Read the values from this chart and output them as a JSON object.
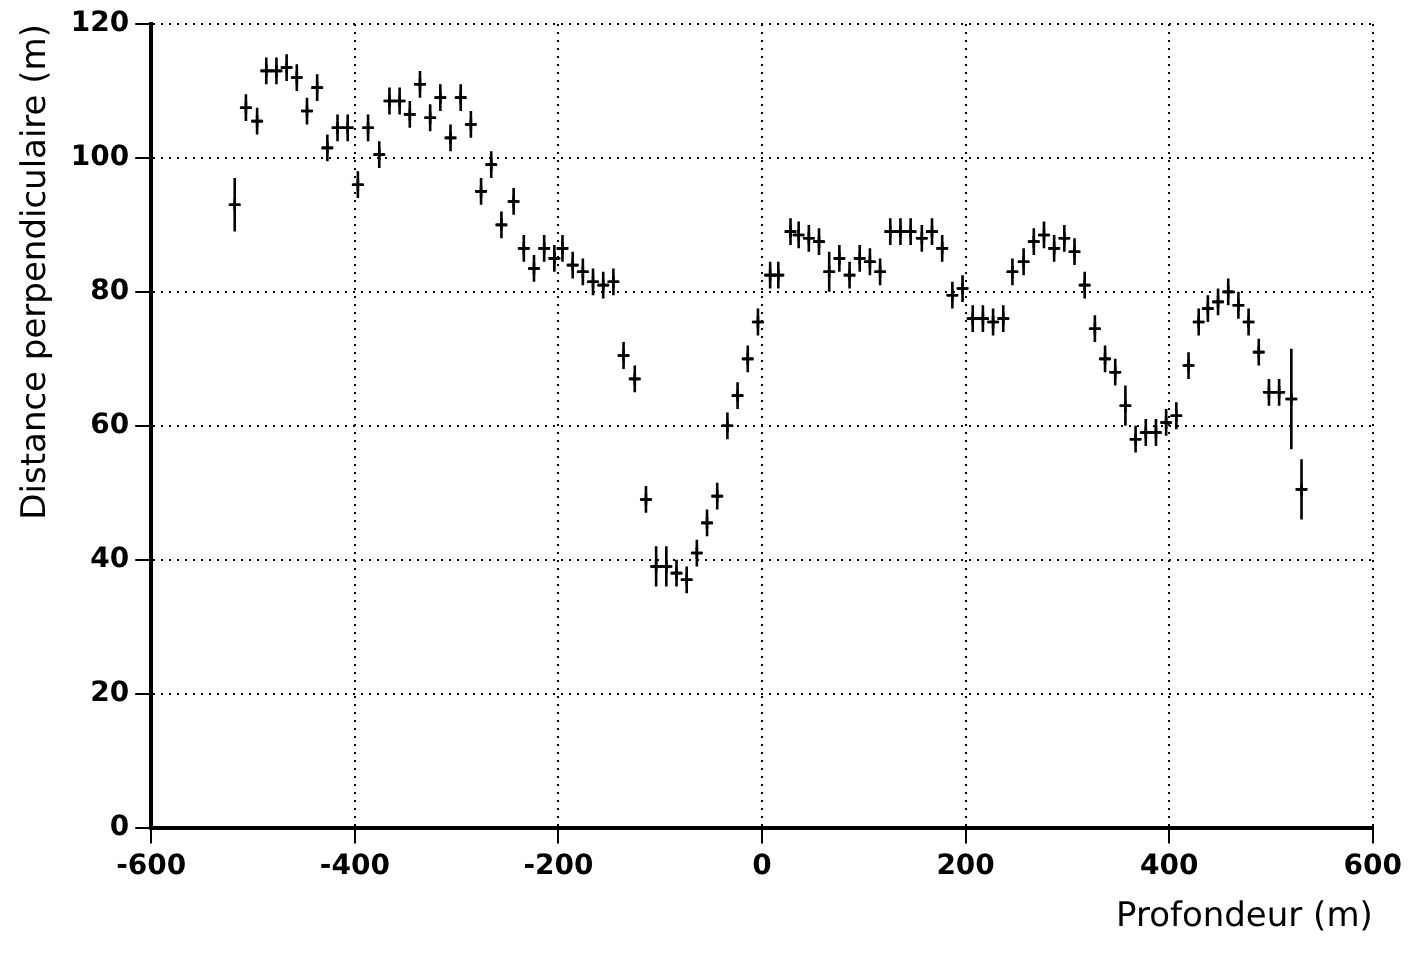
{
  "chart_data": {
    "type": "scatter",
    "xlabel": "Profondeur (m)",
    "ylabel": "Distance perpendiculaire (m)",
    "x": [
      -518,
      -507,
      -496,
      -487,
      -477,
      -467,
      -457,
      -447,
      -437,
      -427,
      -417,
      -407,
      -397,
      -387,
      -376,
      -366,
      -356,
      -346,
      -336,
      -326,
      -316,
      -306,
      -296,
      -286,
      -276,
      -266,
      -256,
      -244,
      -234,
      -224,
      -214,
      -204,
      -196,
      -186,
      -176,
      -166,
      -156,
      -146,
      -136,
      -125,
      -114,
      -104,
      -94,
      -84,
      -74,
      -64,
      -54,
      -44,
      -34,
      -24,
      -14,
      -4,
      8,
      16,
      28,
      36,
      46,
      56,
      66,
      76,
      86,
      96,
      106,
      116,
      126,
      136,
      146,
      157,
      167,
      177,
      187,
      197,
      207,
      217,
      227,
      237,
      246,
      257,
      267,
      277,
      287,
      297,
      307,
      317,
      327,
      337,
      347,
      357,
      367,
      377,
      387,
      397,
      407,
      419,
      429,
      438,
      448,
      458,
      468,
      478,
      488,
      498,
      508,
      520,
      530
    ],
    "values": [
      93,
      107.5,
      105.5,
      113,
      113,
      113.5,
      112,
      107,
      110.5,
      101.5,
      104.5,
      104.5,
      96,
      104.5,
      100.5,
      108.5,
      108.5,
      106.5,
      111,
      106,
      109,
      103,
      109,
      105,
      95,
      99,
      90,
      93.5,
      86.5,
      83.5,
      86.5,
      85,
      86.5,
      84,
      83,
      81.5,
      81,
      81.5,
      70.5,
      67,
      49,
      39,
      39,
      38,
      37,
      41,
      45.5,
      49.5,
      60,
      64.5,
      70,
      75.5,
      82.5,
      82.5,
      89,
      88.5,
      88,
      87.5,
      83,
      85,
      82.5,
      85,
      84.5,
      83,
      89,
      89,
      89,
      88,
      89,
      86.5,
      79.5,
      80.5,
      76,
      76,
      75.5,
      76,
      83,
      84.5,
      87.5,
      88.5,
      86.5,
      88,
      86,
      81,
      74.5,
      70,
      68,
      63,
      58,
      59,
      59,
      60.5,
      61.5,
      69,
      75.5,
      77.5,
      78.5,
      80,
      78,
      75.5,
      71,
      65,
      65,
      64,
      50.5
    ],
    "errors": [
      4,
      2,
      2,
      2,
      2,
      2,
      2,
      2,
      2,
      2,
      2,
      2,
      2,
      2,
      2,
      2,
      2,
      2,
      2,
      2,
      2,
      2,
      2,
      2,
      2,
      2,
      2,
      2,
      2,
      2,
      2,
      2,
      2,
      2,
      2,
      2,
      2,
      2,
      2,
      2,
      2,
      3,
      3,
      2,
      2,
      2,
      2,
      2,
      2,
      2,
      2,
      2,
      2,
      2,
      2,
      2,
      2,
      2,
      3,
      2,
      2,
      2,
      2,
      2,
      2,
      2,
      2,
      2,
      2,
      2,
      2,
      2,
      2,
      2,
      2,
      2,
      2,
      2,
      2,
      2,
      2,
      2,
      2,
      2,
      2,
      2,
      2,
      3,
      2,
      2,
      2,
      2,
      2,
      2,
      2,
      2,
      2,
      2,
      2,
      2,
      2,
      2,
      2,
      7.5,
      4.5
    ],
    "xerrors": [
      5,
      5,
      5,
      5,
      5,
      5,
      5,
      5,
      5,
      5,
      5,
      5,
      5,
      5,
      5,
      5,
      5,
      5,
      5,
      5,
      5,
      5,
      5,
      5,
      5,
      5,
      5,
      5,
      5,
      5,
      5,
      5,
      5,
      5,
      5,
      5,
      5,
      5,
      5,
      5,
      5,
      5,
      5,
      5,
      5,
      5,
      5,
      5,
      5,
      5,
      5,
      5,
      5,
      5,
      5,
      5,
      5,
      5,
      5,
      5,
      5,
      5,
      5,
      5,
      5,
      5,
      5,
      5,
      5,
      5,
      5,
      5,
      5,
      5,
      5,
      5,
      5,
      5,
      5,
      5,
      5,
      5,
      5,
      5,
      5,
      5,
      5,
      5,
      5,
      5,
      5,
      5,
      5,
      5,
      5,
      5,
      5,
      5,
      5,
      5,
      5,
      5,
      5,
      5,
      5
    ],
    "color": "#000000",
    "marker": "cross",
    "grid": true,
    "xlim": [
      -600,
      600
    ],
    "xticks": [
      -600,
      -400,
      -200,
      0,
      200,
      400,
      600
    ],
    "ylim": [
      0,
      120
    ],
    "yticks": [
      0,
      20,
      40,
      60,
      80,
      100,
      120
    ]
  }
}
